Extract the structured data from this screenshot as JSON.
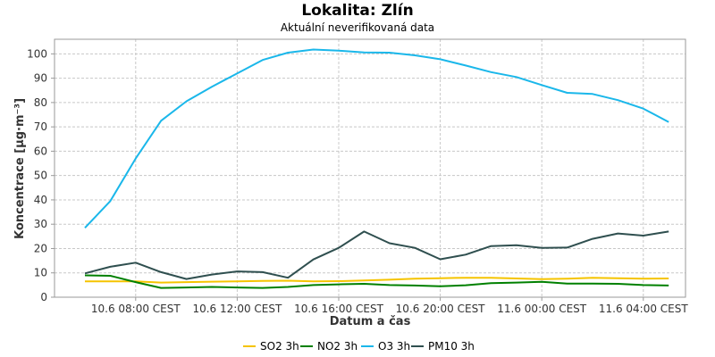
{
  "chart_data": {
    "type": "line",
    "title": "Lokalita: Zlín",
    "subtitle": "Aktuální neverifikovaná data",
    "xlabel": "Datum a čas",
    "ylabel": "Koncentrace [µg·m⁻³]",
    "ylim": [
      0,
      106
    ],
    "yticks": [
      0,
      10,
      20,
      30,
      40,
      50,
      60,
      70,
      80,
      90,
      100
    ],
    "x": [
      "10.6 06:00",
      "10.6 07:00",
      "10.6 08:00",
      "10.6 09:00",
      "10.6 10:00",
      "10.6 11:00",
      "10.6 12:00",
      "10.6 13:00",
      "10.6 14:00",
      "10.6 15:00",
      "10.6 16:00",
      "10.6 17:00",
      "10.6 18:00",
      "10.6 19:00",
      "10.6 20:00",
      "10.6 21:00",
      "10.6 22:00",
      "10.6 23:00",
      "11.6 00:00",
      "11.6 01:00",
      "11.6 02:00",
      "11.6 03:00",
      "11.6 04:00",
      "11.6 05:00"
    ],
    "xticks": [
      {
        "index": 2,
        "label": "10.6 08:00 CEST"
      },
      {
        "index": 6,
        "label": "10.6 12:00 CEST"
      },
      {
        "index": 10,
        "label": "10.6 16:00 CEST"
      },
      {
        "index": 14,
        "label": "10.6 20:00 CEST"
      },
      {
        "index": 18,
        "label": "11.6 00:00 CEST"
      },
      {
        "index": 22,
        "label": "11.6 04:00 CEST"
      }
    ],
    "grid": true,
    "legend": "bottom",
    "series": [
      {
        "name": "SO2 3h",
        "color": "#f5c400",
        "values": [
          6.5,
          6.5,
          6.5,
          6.0,
          6.2,
          6.4,
          6.5,
          6.7,
          6.8,
          6.5,
          6.6,
          6.9,
          7.2,
          7.6,
          7.8,
          8.0,
          8.0,
          7.7,
          7.4,
          7.6,
          8.0,
          7.8,
          7.6,
          7.7
        ]
      },
      {
        "name": "NO2 3h",
        "color": "#008000",
        "values": [
          9.0,
          8.8,
          6.2,
          3.8,
          4.0,
          4.2,
          4.0,
          3.8,
          4.2,
          5.0,
          5.3,
          5.5,
          5.0,
          4.8,
          4.5,
          4.9,
          5.8,
          6.0,
          6.3,
          5.6,
          5.6,
          5.5,
          5.0,
          4.8
        ]
      },
      {
        "name": "O3 3h",
        "color": "#1ab7ea",
        "values": [
          28.5,
          39.5,
          57.0,
          72.5,
          80.5,
          86.5,
          92.0,
          97.5,
          100.5,
          101.8,
          101.3,
          100.6,
          100.5,
          99.4,
          97.8,
          95.2,
          92.5,
          90.5,
          87.2,
          84.0,
          83.5,
          81.0,
          77.5,
          72.0
        ]
      },
      {
        "name": "PM10 3h",
        "color": "#2f4f4f",
        "values": [
          9.8,
          12.5,
          14.2,
          10.3,
          7.5,
          9.3,
          10.6,
          10.3,
          8.0,
          15.5,
          20.3,
          27.0,
          22.2,
          20.3,
          15.6,
          17.5,
          21.0,
          21.4,
          20.3,
          20.4,
          24.0,
          26.2,
          25.3,
          27.0
        ]
      }
    ]
  }
}
